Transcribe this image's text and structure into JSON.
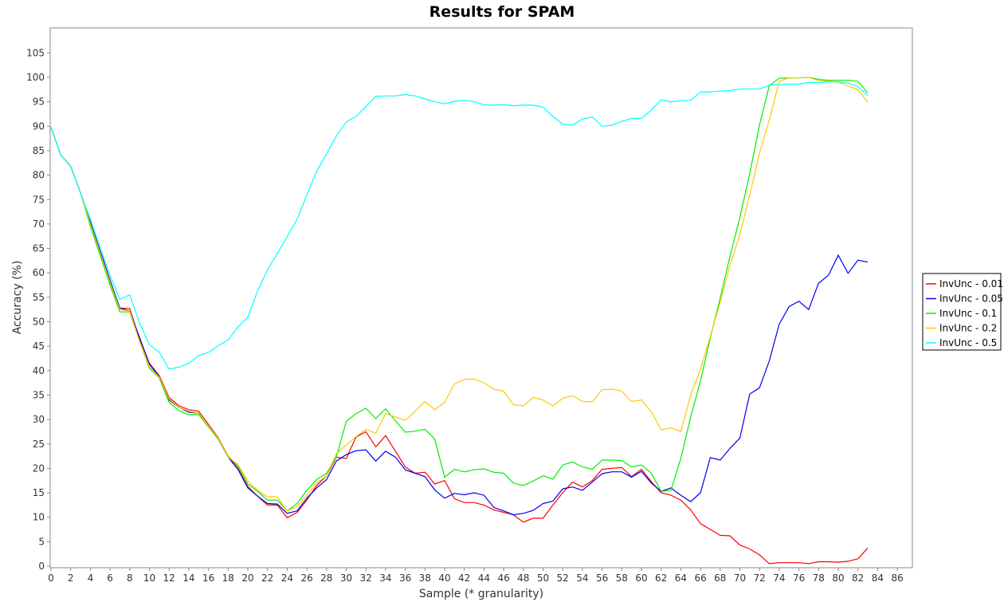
{
  "chart_data": {
    "type": "line",
    "title": "Results for SPAM",
    "xlabel": "Sample (* granularity)",
    "ylabel": "Accuracy (%)",
    "xlim": [
      0,
      87
    ],
    "ylim": [
      0,
      105
    ],
    "x_ticks": [
      0,
      2,
      4,
      6,
      8,
      10,
      12,
      14,
      16,
      18,
      20,
      22,
      24,
      26,
      28,
      30,
      32,
      34,
      36,
      38,
      40,
      42,
      44,
      46,
      48,
      50,
      52,
      54,
      56,
      58,
      60,
      62,
      64,
      66,
      68,
      70,
      72,
      74,
      76,
      78,
      80,
      82,
      84,
      86
    ],
    "y_ticks": [
      0,
      5,
      10,
      15,
      20,
      25,
      30,
      35,
      40,
      45,
      50,
      55,
      60,
      65,
      70,
      75,
      80,
      85,
      90,
      95,
      100,
      105
    ],
    "grid": false,
    "legend_position": "right",
    "x": [
      0,
      1,
      2,
      3,
      4,
      5,
      6,
      7,
      8,
      9,
      10,
      11,
      12,
      13,
      14,
      15,
      16,
      17,
      18,
      19,
      20,
      21,
      22,
      23,
      24,
      25,
      26,
      27,
      28,
      29,
      30,
      31,
      32,
      33,
      34,
      35,
      36,
      37,
      38,
      39,
      40,
      41,
      42,
      43,
      44,
      45,
      46,
      47,
      48,
      49,
      50,
      51,
      52,
      53,
      54,
      55,
      56,
      57,
      58,
      59,
      60,
      61,
      62,
      63,
      64,
      65,
      66,
      67,
      68,
      69,
      70,
      71,
      72,
      73,
      74,
      75,
      76,
      77,
      78,
      79,
      80,
      81,
      82,
      83
    ],
    "series": [
      {
        "name": "InvUnc - 0.01",
        "color": "#ff0000",
        "values": [
          89.8,
          84.1,
          81.8,
          76.4,
          70.0,
          64.0,
          58.0,
          52.8,
          52.7,
          46.5,
          41.5,
          39.0,
          34.5,
          32.8,
          32.0,
          31.7,
          29.0,
          26.3,
          22.5,
          20.0,
          16.3,
          14.3,
          12.5,
          12.5,
          9.9,
          11.0,
          13.5,
          16.5,
          18.5,
          22.3,
          22.0,
          26.4,
          27.5,
          24.4,
          26.7,
          23.5,
          20.3,
          19.0,
          19.2,
          16.8,
          17.5,
          13.8,
          13.0,
          13.0,
          12.5,
          11.5,
          11.0,
          10.5,
          9.0,
          9.8,
          9.8,
          12.5,
          15.0,
          17.2,
          16.2,
          17.5,
          19.8,
          20.0,
          20.2,
          18.3,
          19.8,
          17.3,
          15.0,
          14.5,
          13.5,
          11.5,
          8.7,
          7.5,
          6.3,
          6.2,
          4.3,
          3.5,
          2.3,
          0.5,
          0.7,
          0.7,
          0.7,
          0.5,
          0.9,
          0.9,
          0.8,
          1.0,
          1.5,
          3.7
        ]
      },
      {
        "name": "InvUnc - 0.05",
        "color": "#0000ee",
        "values": [
          89.8,
          84.1,
          81.8,
          76.4,
          70.5,
          64.5,
          58.5,
          52.8,
          52.2,
          46.8,
          41.3,
          38.8,
          34.0,
          32.5,
          31.5,
          31.3,
          28.5,
          26.0,
          22.3,
          19.8,
          16.0,
          14.3,
          12.8,
          12.7,
          10.8,
          11.3,
          13.9,
          16.0,
          17.7,
          21.5,
          22.8,
          23.6,
          23.8,
          21.5,
          23.5,
          22.3,
          19.7,
          19.0,
          18.3,
          15.6,
          13.9,
          14.9,
          14.6,
          15.0,
          14.5,
          12.0,
          11.3,
          10.5,
          10.8,
          11.4,
          12.8,
          13.3,
          15.8,
          16.2,
          15.5,
          17.2,
          18.9,
          19.3,
          19.3,
          18.2,
          19.4,
          17.0,
          15.3,
          16.0,
          14.5,
          13.2,
          15.0,
          22.2,
          21.7,
          24.1,
          26.2,
          35.2,
          36.5,
          42.0,
          49.5,
          53.1,
          54.2,
          52.5,
          57.9,
          59.5,
          63.6,
          59.9,
          62.6,
          62.2
        ]
      },
      {
        "name": "InvUnc - 0.1",
        "color": "#00ee00",
        "values": [
          89.8,
          84.1,
          81.8,
          76.4,
          69.5,
          63.5,
          57.5,
          52.0,
          52.0,
          46.0,
          40.5,
          38.5,
          33.5,
          31.8,
          31.0,
          31.0,
          28.5,
          26.0,
          22.5,
          20.5,
          16.8,
          15.3,
          13.5,
          13.5,
          11.3,
          12.8,
          15.5,
          17.7,
          19.0,
          22.3,
          29.6,
          31.2,
          32.3,
          30.2,
          32.2,
          29.7,
          27.4,
          27.6,
          28.0,
          26.0,
          18.2,
          19.8,
          19.3,
          19.7,
          19.9,
          19.2,
          19.0,
          17.0,
          16.5,
          17.4,
          18.5,
          17.8,
          20.7,
          21.3,
          20.3,
          19.8,
          21.7,
          21.7,
          21.6,
          20.3,
          20.7,
          19.0,
          15.3,
          15.5,
          22.0,
          30.5,
          37.9,
          46.7,
          54.8,
          63.4,
          71.3,
          80.3,
          90.3,
          98.3,
          99.8,
          99.9,
          99.9,
          100.0,
          99.6,
          99.4,
          99.4,
          99.4,
          99.2,
          96.8
        ]
      },
      {
        "name": "InvUnc - 0.2",
        "color": "#ffc800",
        "values": [
          89.8,
          84.1,
          81.8,
          76.4,
          70.0,
          64.0,
          58.0,
          52.5,
          52.2,
          46.0,
          40.8,
          38.7,
          34.2,
          32.5,
          31.7,
          31.3,
          28.7,
          26.2,
          22.3,
          20.8,
          17.4,
          15.5,
          14.2,
          14.2,
          11.3,
          12.2,
          14.5,
          17.0,
          18.5,
          23.0,
          24.8,
          26.5,
          28.0,
          27.2,
          31.2,
          30.5,
          29.8,
          31.7,
          33.7,
          32.0,
          33.5,
          37.3,
          38.2,
          38.3,
          37.5,
          36.2,
          35.8,
          33.0,
          32.8,
          34.5,
          34.0,
          32.8,
          34.3,
          34.9,
          33.7,
          33.6,
          36.1,
          36.2,
          35.8,
          33.7,
          34.0,
          31.6,
          27.9,
          28.3,
          27.5,
          35.0,
          40.3,
          47.0,
          54.0,
          61.5,
          67.8,
          76.0,
          84.5,
          91.3,
          99.2,
          99.9,
          99.9,
          100.0,
          99.3,
          99.2,
          99.0,
          98.2,
          97.5,
          94.9
        ]
      },
      {
        "name": "InvUnc - 0.5",
        "color": "#00ffff",
        "values": [
          89.8,
          84.1,
          81.8,
          76.4,
          71.0,
          65.0,
          59.5,
          54.6,
          55.5,
          49.8,
          45.3,
          43.8,
          40.3,
          40.7,
          41.5,
          43.1,
          43.7,
          45.1,
          46.3,
          48.9,
          50.9,
          56.3,
          60.6,
          64.0,
          67.4,
          71.0,
          75.9,
          80.8,
          84.3,
          88.0,
          90.9,
          92.0,
          94.0,
          96.1,
          96.2,
          96.2,
          96.5,
          96.2,
          95.6,
          95.0,
          94.6,
          95.1,
          95.3,
          95.0,
          94.4,
          94.3,
          94.4,
          94.2,
          94.3,
          94.3,
          93.9,
          92.0,
          90.4,
          90.2,
          91.5,
          91.9,
          90.0,
          90.2,
          91.0,
          91.6,
          91.6,
          93.3,
          95.4,
          95.0,
          95.2,
          95.3,
          97.0,
          97.0,
          97.2,
          97.3,
          97.6,
          97.6,
          97.6,
          98.4,
          98.5,
          98.6,
          98.6,
          99.0,
          98.9,
          99.1,
          99.1,
          98.8,
          98.1,
          96.3
        ]
      }
    ]
  }
}
